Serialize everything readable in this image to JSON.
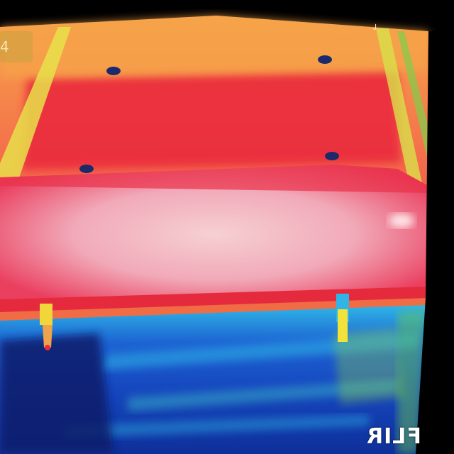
{
  "overlay": {
    "top_left_glyph": "4",
    "top_right_glyph": "┘",
    "logo_text": "FLIR"
  },
  "palette": {
    "hot_white": "#f7d6d8",
    "hot_pink": "#ef4f78",
    "red": "#ea2c3e",
    "orange": "#f5a34a",
    "yellow": "#f2e23a",
    "green": "#8ed24a",
    "cyan": "#2fb6e6",
    "blue": "#1d64d3",
    "deep_blue": "#0a1d6b",
    "black": "#000000"
  }
}
